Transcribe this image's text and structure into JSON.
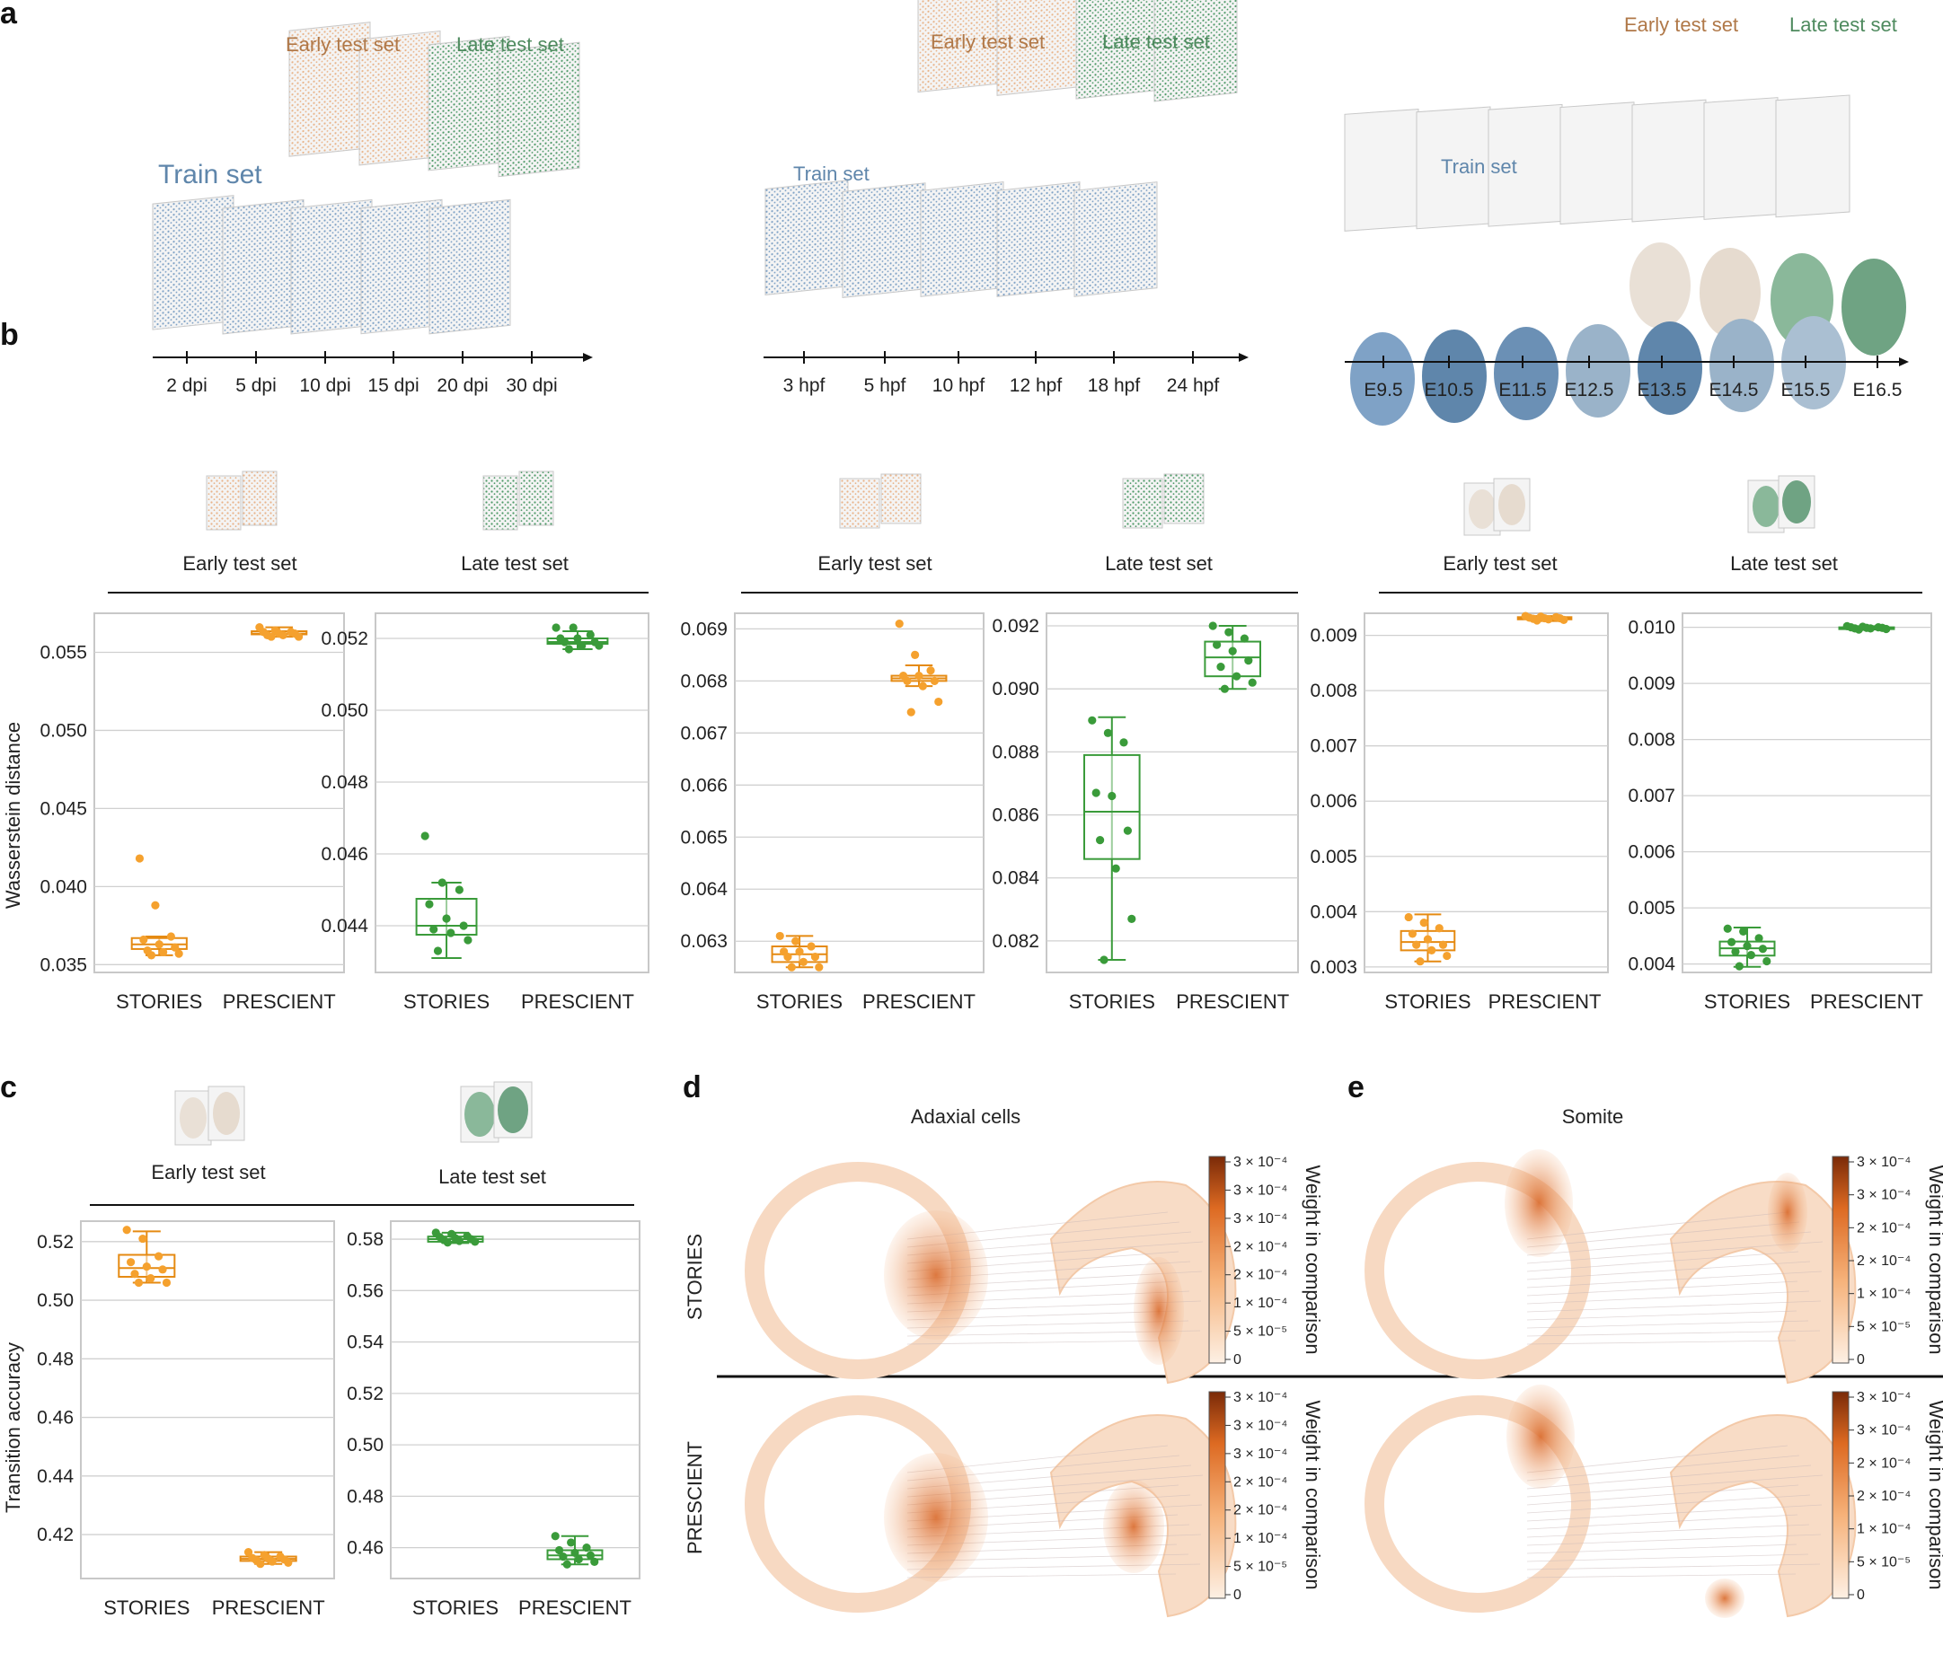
{
  "colors": {
    "orange": "#f5a12e",
    "orange_dark": "#e58a12",
    "green": "#3a9b3a",
    "early_label": "#b07848",
    "late_label": "#4e8a5e",
    "train_label": "#5f86ab",
    "blue_points": "#7fa2c6",
    "heat_high": "#7a2a08",
    "heat_low": "#fdf0e4"
  },
  "panel_labels": {
    "a": "a",
    "b": "b",
    "c": "c",
    "d": "d",
    "e": "e"
  },
  "panel_a": {
    "axolotl": {
      "train": "Train set",
      "early": "Early test set",
      "late": "Late test set",
      "ticks": [
        "2 dpi",
        "5 dpi",
        "10 dpi",
        "15 dpi",
        "20 dpi",
        "30 dpi"
      ]
    },
    "zebrafish": {
      "train": "Train set",
      "early": "Early test set",
      "late": "Late test set",
      "ticks": [
        "3 hpf",
        "5 hpf",
        "10 hpf",
        "12 hpf",
        "18 hpf",
        "24 hpf"
      ]
    },
    "mouse": {
      "train": "Train set",
      "early": "Early test set",
      "late": "Late test set",
      "ticks": [
        "E9.5",
        "E10.5",
        "E11.5",
        "E12.5",
        "E13.5",
        "E14.5",
        "E15.5",
        "E16.5"
      ]
    }
  },
  "panel_b": {
    "headers": [
      "Early test set",
      "Late test set",
      "Early test set",
      "Late test set",
      "Early test set",
      "Late test set"
    ],
    "ylabel": "Wasserstein distance"
  },
  "panel_c": {
    "headers": [
      "Early test set",
      "Late test set"
    ],
    "ylabel": "Transition accuracy"
  },
  "panel_d": {
    "title": "Adaxial cells"
  },
  "panel_e": {
    "title": "Somite"
  },
  "row_labels": [
    "STORIES",
    "PRESCIENT"
  ],
  "colorbar": {
    "label": "Weight in comparison",
    "ticks_d": [
      "3 × 10⁻⁴",
      "3 × 10⁻⁴",
      "3 × 10⁻⁴",
      "2 × 10⁻⁴",
      "2 × 10⁻⁴",
      "1 × 10⁻⁴",
      "5 × 10⁻⁵",
      "0"
    ],
    "ticks_e": [
      "3 × 10⁻⁴",
      "3 × 10⁻⁴",
      "2 × 10⁻⁴",
      "2 × 10⁻⁴",
      "1 × 10⁻⁴",
      "5 × 10⁻⁵",
      "0"
    ]
  },
  "chart_data": [
    {
      "type": "box",
      "panel": "b",
      "dataset": "axolotl",
      "title": "Early test set",
      "ylabel": "Wasserstein distance",
      "categories": [
        "STORIES",
        "PRESCIENT"
      ],
      "ylim": [
        0.0345,
        0.0575
      ],
      "yticks": [
        "0.035",
        "0.040",
        "0.045",
        "0.050",
        "0.055"
      ],
      "tick_values": [
        0.035,
        0.04,
        0.045,
        0.05,
        0.055
      ],
      "color": "orange",
      "series": [
        {
          "name": "STORIES",
          "q1": 0.036,
          "median": 0.0363,
          "q3": 0.0367,
          "whisker_low": 0.0356,
          "whisker_high": 0.0368,
          "points": [
            0.0418,
            0.0388,
            0.0368,
            0.0366,
            0.0363,
            0.0361,
            0.0359,
            0.0358,
            0.0357,
            0.0356
          ]
        },
        {
          "name": "PRESCIENT",
          "q1": 0.05615,
          "median": 0.0562,
          "q3": 0.05635,
          "whisker_low": 0.056,
          "whisker_high": 0.0566,
          "points": [
            0.0566,
            0.0564,
            0.0563,
            0.0563,
            0.0562,
            0.0562,
            0.0561,
            0.0561,
            0.056,
            0.056
          ]
        }
      ]
    },
    {
      "type": "box",
      "panel": "b",
      "dataset": "axolotl",
      "title": "Late test set",
      "categories": [
        "STORIES",
        "PRESCIENT"
      ],
      "ylim": [
        0.0427,
        0.0527
      ],
      "yticks": [
        "0.044",
        "0.046",
        "0.048",
        "0.050",
        "0.052"
      ],
      "tick_values": [
        0.044,
        0.046,
        0.048,
        0.05,
        0.052
      ],
      "color": "green",
      "series": [
        {
          "name": "STORIES",
          "q1": 0.04375,
          "median": 0.044,
          "q3": 0.04475,
          "whisker_low": 0.0431,
          "whisker_high": 0.0452,
          "points": [
            0.0465,
            0.0452,
            0.045,
            0.0446,
            0.0442,
            0.044,
            0.0439,
            0.0438,
            0.0436,
            0.0433
          ]
        },
        {
          "name": "PRESCIENT",
          "q1": 0.05185,
          "median": 0.0519,
          "q3": 0.052,
          "whisker_low": 0.0517,
          "whisker_high": 0.0522,
          "points": [
            0.0523,
            0.0523,
            0.0521,
            0.052,
            0.052,
            0.0519,
            0.0519,
            0.0518,
            0.0518,
            0.0517
          ]
        }
      ]
    },
    {
      "type": "box",
      "panel": "b",
      "dataset": "zebrafish",
      "title": "Early test set",
      "categories": [
        "STORIES",
        "PRESCIENT"
      ],
      "ylim": [
        0.0624,
        0.0693
      ],
      "yticks": [
        "0.063",
        "0.064",
        "0.065",
        "0.066",
        "0.067",
        "0.068",
        "0.069"
      ],
      "tick_values": [
        0.063,
        0.064,
        0.065,
        0.066,
        0.067,
        0.068,
        0.069
      ],
      "color": "orange",
      "series": [
        {
          "name": "STORIES",
          "q1": 0.0626,
          "median": 0.06275,
          "q3": 0.0629,
          "whisker_low": 0.0625,
          "whisker_high": 0.0631,
          "points": [
            0.0631,
            0.063,
            0.0629,
            0.0628,
            0.0628,
            0.0627,
            0.0627,
            0.0626,
            0.0625,
            0.0625
          ]
        },
        {
          "name": "PRESCIENT",
          "q1": 0.068,
          "median": 0.06805,
          "q3": 0.0681,
          "whisker_low": 0.0679,
          "whisker_high": 0.0683,
          "points": [
            0.0691,
            0.0685,
            0.0682,
            0.0681,
            0.0681,
            0.068,
            0.068,
            0.0679,
            0.0676,
            0.0674
          ]
        }
      ]
    },
    {
      "type": "box",
      "panel": "b",
      "dataset": "zebrafish",
      "title": "Late test set",
      "categories": [
        "STORIES",
        "PRESCIENT"
      ],
      "ylim": [
        0.081,
        0.0924
      ],
      "yticks": [
        "0.082",
        "0.084",
        "0.086",
        "0.088",
        "0.090",
        "0.092"
      ],
      "tick_values": [
        0.082,
        0.084,
        0.086,
        0.088,
        0.09,
        0.092
      ],
      "color": "green",
      "series": [
        {
          "name": "STORIES",
          "q1": 0.0846,
          "median": 0.0861,
          "q3": 0.0879,
          "whisker_low": 0.0814,
          "whisker_high": 0.0891,
          "points": [
            0.089,
            0.0886,
            0.0883,
            0.0867,
            0.0866,
            0.0855,
            0.0852,
            0.0843,
            0.0827,
            0.0814
          ]
        },
        {
          "name": "PRESCIENT",
          "q1": 0.0904,
          "median": 0.091,
          "q3": 0.0915,
          "whisker_low": 0.09,
          "whisker_high": 0.092,
          "points": [
            0.092,
            0.0918,
            0.0916,
            0.0914,
            0.0912,
            0.0909,
            0.0907,
            0.0904,
            0.0902,
            0.09
          ]
        }
      ]
    },
    {
      "type": "box",
      "panel": "b",
      "dataset": "mouse",
      "title": "Early test set",
      "categories": [
        "STORIES",
        "PRESCIENT"
      ],
      "ylim": [
        0.0029,
        0.0094
      ],
      "yticks": [
        "0.003",
        "0.004",
        "0.005",
        "0.006",
        "0.007",
        "0.008",
        "0.009"
      ],
      "tick_values": [
        0.003,
        0.004,
        0.005,
        0.006,
        0.007,
        0.008,
        0.009
      ],
      "color": "orange",
      "series": [
        {
          "name": "STORIES",
          "q1": 0.0033,
          "median": 0.00345,
          "q3": 0.00365,
          "whisker_low": 0.0031,
          "whisker_high": 0.00395,
          "points": [
            0.0039,
            0.0038,
            0.0037,
            0.0036,
            0.0035,
            0.0034,
            0.0034,
            0.0033,
            0.0032,
            0.0031
          ]
        },
        {
          "name": "PRESCIENT",
          "q1": 0.00929,
          "median": 0.00931,
          "q3": 0.00933,
          "whisker_low": 0.00926,
          "whisker_high": 0.00935,
          "points": [
            0.00935,
            0.00934,
            0.00933,
            0.00932,
            0.00931,
            0.00931,
            0.0093,
            0.00929,
            0.00928,
            0.00927
          ]
        }
      ]
    },
    {
      "type": "box",
      "panel": "b",
      "dataset": "mouse",
      "title": "Late test set",
      "categories": [
        "STORIES",
        "PRESCIENT"
      ],
      "ylim": [
        0.00385,
        0.01025
      ],
      "yticks": [
        "0.004",
        "0.005",
        "0.006",
        "0.007",
        "0.008",
        "0.009",
        "0.010"
      ],
      "tick_values": [
        0.004,
        0.005,
        0.006,
        0.007,
        0.008,
        0.009,
        0.01
      ],
      "color": "green",
      "series": [
        {
          "name": "STORIES",
          "q1": 0.00415,
          "median": 0.00428,
          "q3": 0.0044,
          "whisker_low": 0.00395,
          "whisker_high": 0.00465,
          "points": [
            0.00463,
            0.00458,
            0.00446,
            0.00439,
            0.00432,
            0.00427,
            0.00422,
            0.00416,
            0.00405,
            0.00396
          ]
        },
        {
          "name": "PRESCIENT",
          "q1": 0.00998,
          "median": 0.00999,
          "q3": 0.01,
          "whisker_low": 0.00996,
          "whisker_high": 0.01002,
          "points": [
            0.01002,
            0.01001,
            0.01,
            0.01,
            0.00999,
            0.00999,
            0.00998,
            0.00998,
            0.00997,
            0.00996
          ]
        }
      ]
    },
    {
      "type": "box",
      "panel": "c",
      "dataset": "mouse",
      "title": "Early test set",
      "ylabel": "Transition accuracy",
      "categories": [
        "STORIES",
        "PRESCIENT"
      ],
      "ylim": [
        0.405,
        0.527
      ],
      "yticks": [
        "0.42",
        "0.44",
        "0.46",
        "0.48",
        "0.50",
        "0.52"
      ],
      "tick_values": [
        0.42,
        0.44,
        0.46,
        0.48,
        0.5,
        0.52
      ],
      "color": "orange",
      "series": [
        {
          "name": "STORIES",
          "q1": 0.508,
          "median": 0.511,
          "q3": 0.5155,
          "whisker_low": 0.506,
          "whisker_high": 0.5235,
          "points": [
            0.524,
            0.521,
            0.515,
            0.513,
            0.5115,
            0.5105,
            0.509,
            0.5075,
            0.506,
            0.506
          ]
        },
        {
          "name": "PRESCIENT",
          "q1": 0.411,
          "median": 0.4117,
          "q3": 0.4125,
          "whisker_low": 0.41,
          "whisker_high": 0.414,
          "points": [
            0.414,
            0.413,
            0.4125,
            0.412,
            0.4118,
            0.4115,
            0.4112,
            0.4108,
            0.4104,
            0.41
          ]
        }
      ]
    },
    {
      "type": "box",
      "panel": "c",
      "dataset": "mouse",
      "title": "Late test set",
      "categories": [
        "STORIES",
        "PRESCIENT"
      ],
      "ylim": [
        0.448,
        0.587
      ],
      "yticks": [
        "0.46",
        "0.48",
        "0.50",
        "0.52",
        "0.54",
        "0.56",
        "0.58"
      ],
      "tick_values": [
        0.46,
        0.48,
        0.5,
        0.52,
        0.54,
        0.56,
        0.58
      ],
      "color": "green",
      "series": [
        {
          "name": "STORIES",
          "q1": 0.579,
          "median": 0.58,
          "q3": 0.581,
          "whisker_low": 0.5785,
          "whisker_high": 0.5825,
          "points": [
            0.5825,
            0.582,
            0.5812,
            0.5808,
            0.5803,
            0.58,
            0.5797,
            0.5793,
            0.579,
            0.5787
          ]
        },
        {
          "name": "PRESCIENT",
          "q1": 0.4555,
          "median": 0.457,
          "q3": 0.459,
          "whisker_low": 0.4535,
          "whisker_high": 0.4645,
          "points": [
            0.4645,
            0.462,
            0.46,
            0.459,
            0.458,
            0.457,
            0.4565,
            0.4555,
            0.4545,
            0.4535
          ]
        }
      ]
    }
  ]
}
